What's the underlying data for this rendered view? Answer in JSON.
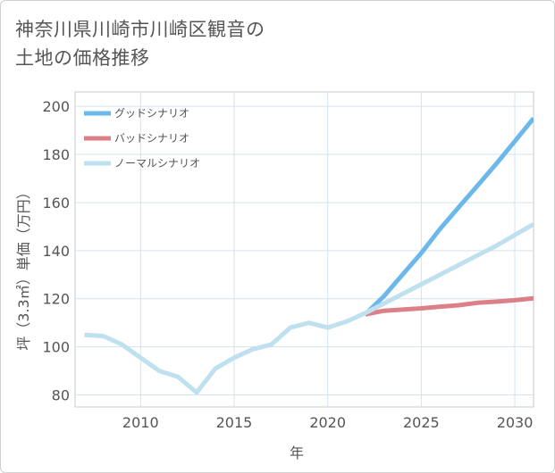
{
  "title": {
    "line1": "神奈川県川崎市川崎区観音の",
    "line2": "土地の価格推移"
  },
  "colors": {
    "good": "#6cb8ea",
    "bad": "#dc8088",
    "normal": "#bfe0ee",
    "grid": "#d3e3ee",
    "axis": "#c9c9c9"
  },
  "chart_data": {
    "type": "line",
    "xlabel": "年",
    "ylabel": "坪（3.3㎡）単価（万円）",
    "xlim": [
      2006.5,
      2031
    ],
    "ylim": [
      75,
      206
    ],
    "xticks": [
      2010,
      2015,
      2020,
      2025,
      2030
    ],
    "yticks": [
      80,
      100,
      120,
      140,
      160,
      180,
      200
    ],
    "grid": true,
    "legend_position": "top-left",
    "series": [
      {
        "name": "グッドシナリオ",
        "color": "#6cb8ea",
        "x": [
          2022,
          2023,
          2024,
          2025,
          2026,
          2027,
          2028,
          2029,
          2030,
          2031
        ],
        "values": [
          113.5,
          121,
          130,
          139,
          149,
          158,
          167,
          176,
          185.5,
          195
        ]
      },
      {
        "name": "バッドシナリオ",
        "color": "#dc8088",
        "x": [
          2022,
          2023,
          2024,
          2025,
          2026,
          2027,
          2028,
          2029,
          2030,
          2031
        ],
        "values": [
          113.5,
          115,
          115.5,
          116,
          116.7,
          117.3,
          118.3,
          118.8,
          119.4,
          120.2
        ]
      },
      {
        "name": "ノーマルシナリオ",
        "color": "#bfe0ee",
        "x": [
          2007,
          2008,
          2009,
          2010,
          2011,
          2012,
          2013,
          2014,
          2015,
          2016,
          2017,
          2018,
          2019,
          2020,
          2021,
          2022,
          2023,
          2024,
          2025,
          2026,
          2027,
          2028,
          2029,
          2030,
          2031
        ],
        "values": [
          105,
          104.5,
          101,
          95.5,
          90,
          87.5,
          81,
          91,
          95.5,
          99,
          101,
          108,
          110,
          108,
          110.5,
          114,
          118,
          122,
          126,
          130,
          134,
          138,
          142,
          146.5,
          151
        ]
      }
    ]
  }
}
